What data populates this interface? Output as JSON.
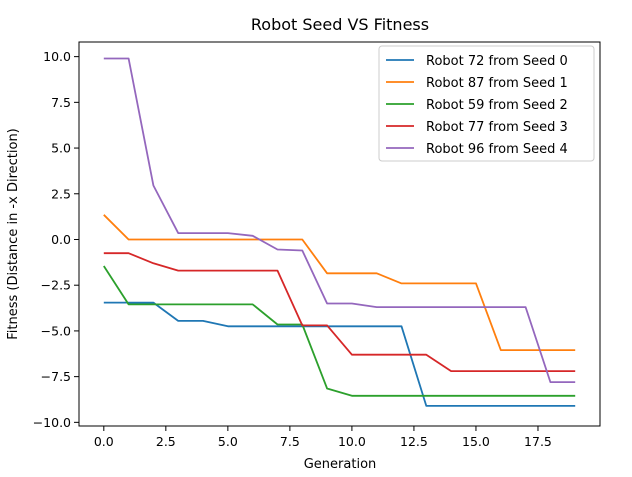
{
  "chart_data": {
    "type": "line",
    "title": "Robot Seed VS Fitness",
    "xlabel": "Generation",
    "ylabel": "Fitness (Distance in -x Direction)",
    "xlim": [
      -1,
      20
    ],
    "ylim": [
      -10.2,
      10.8
    ],
    "xticks": [
      0,
      2.5,
      5,
      7.5,
      10,
      12.5,
      15,
      17.5
    ],
    "xtick_labels": [
      "0.0",
      "2.5",
      "5.0",
      "7.5",
      "10.0",
      "12.5",
      "15.0",
      "17.5"
    ],
    "yticks": [
      10,
      7.5,
      5,
      2.5,
      0,
      -2.5,
      -5,
      -7.5,
      -10
    ],
    "ytick_labels": [
      "10.0",
      "7.5",
      "5.0",
      "2.5",
      "0.0",
      "−2.5",
      "−5.0",
      "−7.5",
      "−10.0"
    ],
    "grid": false,
    "legend_position": "top-right",
    "x": [
      0,
      1,
      2,
      3,
      4,
      5,
      6,
      7,
      8,
      9,
      10,
      11,
      12,
      13,
      14,
      15,
      16,
      17,
      18,
      19
    ],
    "series": [
      {
        "name": "Robot 72 from Seed 0",
        "color": "#1f77b4",
        "values": [
          -3.45,
          -3.45,
          -3.45,
          -4.45,
          -4.45,
          -4.75,
          -4.75,
          -4.75,
          -4.75,
          -4.75,
          -4.75,
          -4.75,
          -4.75,
          -9.1,
          -9.1,
          -9.1,
          -9.1,
          -9.1,
          -9.1,
          -9.1
        ]
      },
      {
        "name": "Robot 87 from Seed 1",
        "color": "#ff7f0e",
        "values": [
          1.35,
          0.0,
          0.0,
          0.0,
          0.0,
          0.0,
          0.0,
          0.0,
          0.0,
          -1.85,
          -1.85,
          -1.85,
          -2.4,
          -2.4,
          -2.4,
          -2.4,
          -6.05,
          -6.05,
          -6.05,
          -6.05
        ]
      },
      {
        "name": "Robot 59 from Seed 2",
        "color": "#2ca02c",
        "values": [
          -1.45,
          -3.55,
          -3.55,
          -3.55,
          -3.55,
          -3.55,
          -3.55,
          -4.65,
          -4.65,
          -8.15,
          -8.55,
          -8.55,
          -8.55,
          -8.55,
          -8.55,
          -8.55,
          -8.55,
          -8.55,
          -8.55,
          -8.55
        ]
      },
      {
        "name": "Robot 77 from Seed 3",
        "color": "#d62728",
        "values": [
          -0.75,
          -0.75,
          -1.3,
          -1.7,
          -1.7,
          -1.7,
          -1.7,
          -1.7,
          -4.7,
          -4.7,
          -6.3,
          -6.3,
          -6.3,
          -6.3,
          -7.2,
          -7.2,
          -7.2,
          -7.2,
          -7.2,
          -7.2
        ]
      },
      {
        "name": "Robot 96 from Seed 4",
        "color": "#9467bd",
        "values": [
          9.9,
          9.9,
          2.95,
          0.35,
          0.35,
          0.35,
          0.2,
          -0.55,
          -0.6,
          -3.5,
          -3.5,
          -3.7,
          -3.7,
          -3.7,
          -3.7,
          -3.7,
          -3.7,
          -3.7,
          -7.8,
          -7.8
        ]
      }
    ]
  }
}
